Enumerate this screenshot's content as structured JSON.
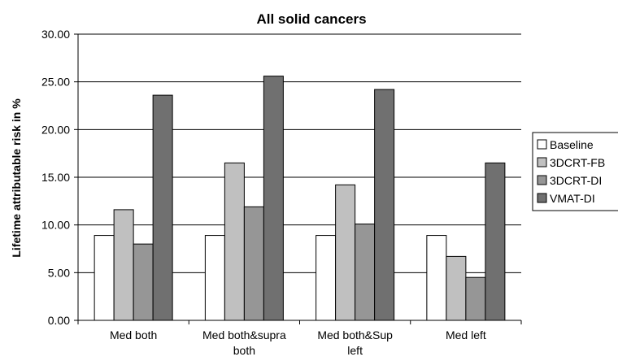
{
  "chart_data": {
    "type": "bar",
    "title": "All solid cancers",
    "xlabel": "",
    "ylabel": "Lifetime attributable risk in %",
    "ylim": [
      0,
      30
    ],
    "yticks": [
      "0.00",
      "5.00",
      "10.00",
      "15.00",
      "20.00",
      "25.00",
      "30.00"
    ],
    "grid": true,
    "legend_position": "right",
    "categories": [
      [
        "Med both"
      ],
      [
        "Med both&supra",
        "both"
      ],
      [
        "Med both&Sup",
        "left"
      ],
      [
        "Med left"
      ]
    ],
    "series": [
      {
        "name": "Baseline",
        "color": "#ffffff",
        "values": [
          8.9,
          8.9,
          8.9,
          8.9
        ]
      },
      {
        "name": "3DCRT-FB",
        "color": "#c0c0c0",
        "values": [
          11.6,
          16.5,
          14.2,
          6.7
        ]
      },
      {
        "name": "3DCRT-DI",
        "color": "#969696",
        "values": [
          8.0,
          11.9,
          10.1,
          4.5
        ]
      },
      {
        "name": "VMAT-DI",
        "color": "#707070",
        "values": [
          23.6,
          25.6,
          24.2,
          16.5
        ]
      }
    ]
  }
}
